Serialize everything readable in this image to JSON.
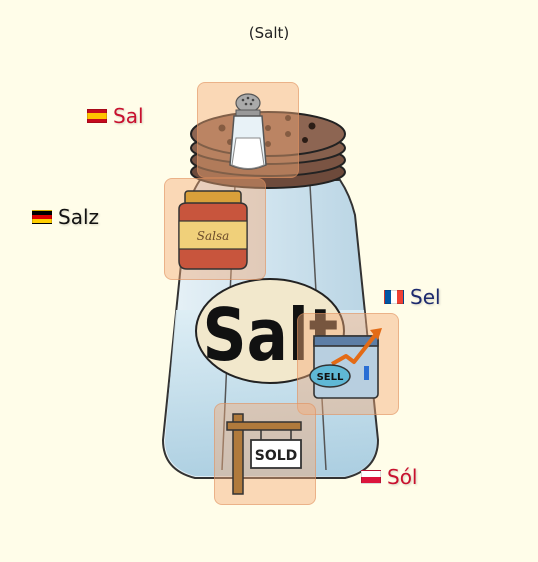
{
  "title": "(Salt)",
  "jar_label": "Salt",
  "translations": [
    {
      "flag": "es",
      "text": "Sal",
      "color": "#c8102e"
    },
    {
      "flag": "de",
      "text": "Salz",
      "color": "#111111"
    },
    {
      "flag": "fr",
      "text": "Sel",
      "color": "#1c2a6e"
    },
    {
      "flag": "pl",
      "text": "Sól",
      "color": "#c8102e"
    }
  ],
  "icons": [
    {
      "name": "salt-shaker-icon",
      "label": ""
    },
    {
      "name": "salsa-jar-icon",
      "label": "Salsa"
    },
    {
      "name": "sell-chart-icon",
      "label": "SELL"
    },
    {
      "name": "sold-sign-icon",
      "label": "SOLD"
    }
  ]
}
